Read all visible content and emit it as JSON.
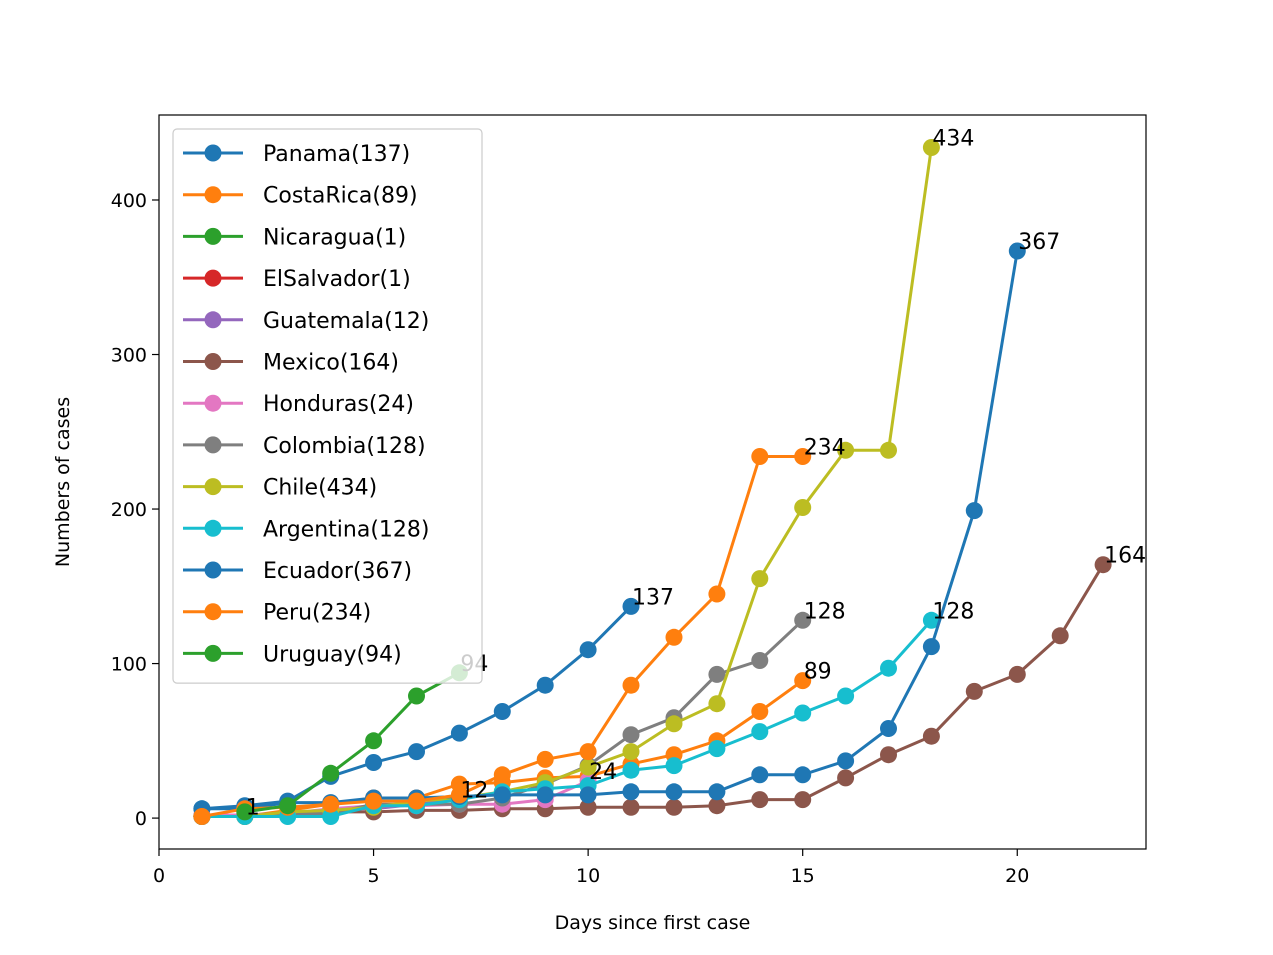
{
  "chart_data": {
    "type": "line",
    "title": "",
    "xlabel": "Days since first case",
    "ylabel": "Numbers of cases",
    "xlim": [
      0,
      23
    ],
    "ylim": [
      -20,
      455
    ],
    "xticks": [
      0,
      5,
      10,
      15,
      20
    ],
    "yticks": [
      0,
      100,
      200,
      300,
      400
    ],
    "grid": false,
    "legend_position": "top-left",
    "series": [
      {
        "name": "Panama(137)",
        "color": "#1f77b4",
        "end_label": "137",
        "x": [
          1,
          2,
          3,
          4,
          5,
          6,
          7,
          8,
          9,
          10,
          11
        ],
        "y": [
          6,
          8,
          11,
          27,
          36,
          43,
          55,
          69,
          86,
          109,
          137
        ]
      },
      {
        "name": "CostaRica(89)",
        "color": "#ff7f0e",
        "end_label": "89",
        "x": [
          1,
          2,
          3,
          4,
          5,
          6,
          7,
          8,
          9,
          10,
          11,
          12,
          13,
          14,
          15
        ],
        "y": [
          1,
          1,
          5,
          9,
          13,
          13,
          22,
          23,
          26,
          27,
          35,
          41,
          50,
          69,
          89
        ]
      },
      {
        "name": "Nicaragua(1)",
        "color": "#2ca02c",
        "end_label": "",
        "x": [
          1
        ],
        "y": [
          1
        ]
      },
      {
        "name": "ElSalvador(1)",
        "color": "#d62728",
        "end_label": "",
        "x": [
          1
        ],
        "y": [
          1
        ]
      },
      {
        "name": "Guatemala(12)",
        "color": "#9467bd",
        "end_label": "12",
        "x": [
          1,
          2,
          3,
          4,
          5,
          6,
          7
        ],
        "y": [
          1,
          1,
          2,
          6,
          6,
          9,
          12
        ]
      },
      {
        "name": "Mexico(164)",
        "color": "#8c564b",
        "end_label": "164",
        "x": [
          1,
          2,
          3,
          4,
          5,
          6,
          7,
          8,
          9,
          10,
          11,
          12,
          13,
          14,
          15,
          16,
          17,
          18,
          19,
          20,
          21,
          22
        ],
        "y": [
          1,
          2,
          3,
          4,
          4,
          5,
          5,
          6,
          6,
          7,
          7,
          7,
          8,
          12,
          12,
          26,
          41,
          53,
          82,
          93,
          118,
          164
        ]
      },
      {
        "name": "Honduras(24)",
        "color": "#e377c2",
        "end_label": "24",
        "x": [
          1,
          2,
          3,
          4,
          5,
          6,
          7,
          8,
          9,
          10
        ],
        "y": [
          2,
          2,
          3,
          6,
          8,
          8,
          9,
          9,
          12,
          24
        ]
      },
      {
        "name": "Colombia(128)",
        "color": "#7f7f7f",
        "end_label": "128",
        "x": [
          1,
          2,
          3,
          4,
          5,
          6,
          7,
          8,
          9,
          10,
          11,
          12,
          13,
          14,
          15
        ],
        "y": [
          1,
          1,
          3,
          3,
          9,
          9,
          9,
          13,
          22,
          34,
          54,
          65,
          93,
          102,
          128
        ]
      },
      {
        "name": "Chile(434)",
        "color": "#bcbd22",
        "end_label": "434",
        "x": [
          1,
          2,
          3,
          4,
          5,
          6,
          7,
          8,
          9,
          10,
          11,
          12,
          13,
          14,
          15,
          16,
          17,
          18
        ],
        "y": [
          1,
          1,
          4,
          5,
          7,
          11,
          13,
          17,
          23,
          33,
          43,
          61,
          74,
          155,
          201,
          238,
          238,
          434
        ]
      },
      {
        "name": "Argentina(128)",
        "color": "#17becf",
        "end_label": "128",
        "x": [
          1,
          2,
          3,
          4,
          5,
          6,
          7,
          8,
          9,
          10,
          11,
          12,
          13,
          14,
          15,
          16,
          17,
          18
        ],
        "y": [
          1,
          1,
          1,
          1,
          8,
          8,
          12,
          17,
          19,
          21,
          31,
          34,
          45,
          56,
          68,
          79,
          97,
          128
        ]
      },
      {
        "name": "Ecuador(367)",
        "color": "#1f77b4",
        "end_label": "367",
        "x": [
          1,
          2,
          3,
          4,
          5,
          6,
          7,
          8,
          9,
          10,
          11,
          12,
          13,
          14,
          15,
          16,
          17,
          18,
          19,
          20
        ],
        "y": [
          6,
          6,
          10,
          10,
          13,
          13,
          14,
          15,
          15,
          15,
          17,
          17,
          17,
          28,
          28,
          37,
          58,
          111,
          199,
          367
        ]
      },
      {
        "name": "Peru(234)",
        "color": "#ff7f0e",
        "end_label": "234",
        "x": [
          1,
          2,
          3,
          4,
          5,
          6,
          7,
          8,
          9,
          10,
          11,
          12,
          13,
          14,
          15
        ],
        "y": [
          1,
          6,
          7,
          9,
          11,
          11,
          15,
          28,
          38,
          43,
          86,
          117,
          145,
          234,
          234
        ]
      },
      {
        "name": "Uruguay(94)",
        "color": "#2ca02c",
        "end_label": "94",
        "x": [
          2,
          3,
          4,
          5,
          6,
          7
        ],
        "y": [
          4,
          8,
          29,
          50,
          79,
          94
        ]
      }
    ],
    "annotations": [
      {
        "text": "1",
        "x": 2,
        "y": 1
      }
    ]
  }
}
